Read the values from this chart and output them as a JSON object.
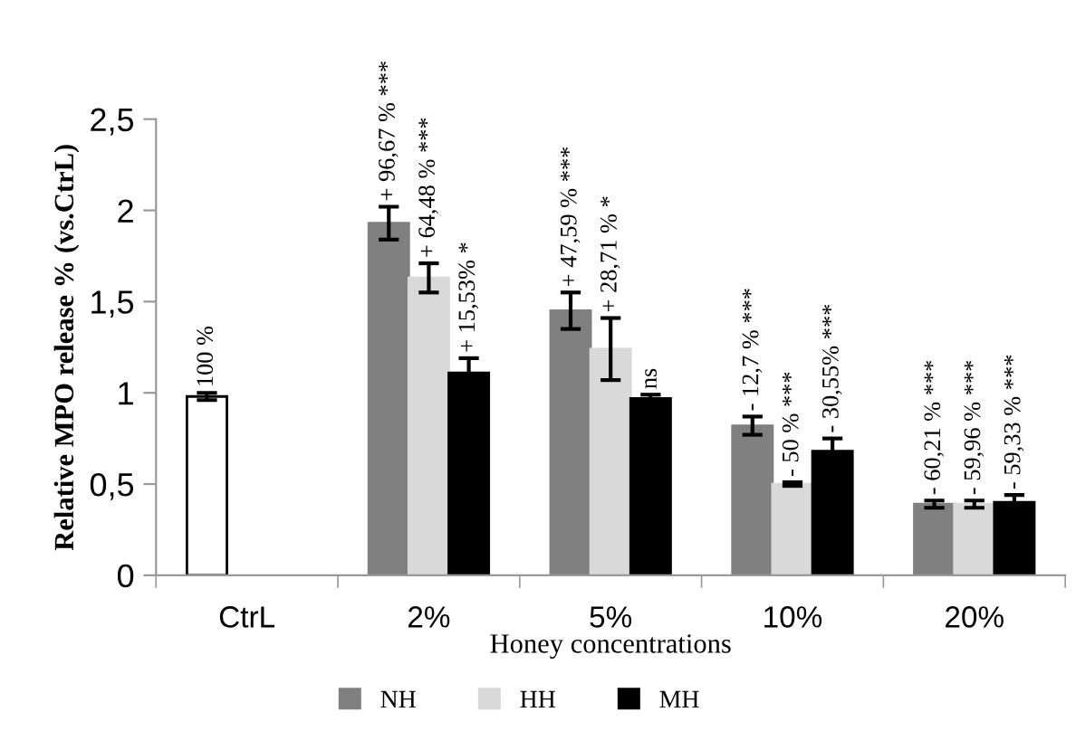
{
  "chart_data": {
    "type": "bar",
    "xlabel": "Honey concentrations",
    "ylabel": "Relative MPO release % (vs.CtrL)",
    "categories": [
      "CtrL",
      "2%",
      "5%",
      "10%",
      "20%"
    ],
    "series": [
      {
        "color": "#ffffff",
        "values": [
          0.98,
          null,
          null,
          null,
          null
        ],
        "errors": [
          0.02,
          null,
          null,
          null,
          null
        ]
      },
      {
        "name": "NH",
        "color": "#808080",
        "values": [
          null,
          1.93,
          1.45,
          0.82,
          0.39
        ],
        "errors": [
          null,
          0.09,
          0.1,
          0.05,
          0.02
        ]
      },
      {
        "name": "HH",
        "color": "#d9d9d9",
        "values": [
          null,
          1.63,
          1.24,
          0.5,
          0.39
        ],
        "errors": [
          null,
          0.08,
          0.17,
          0.01,
          0.02
        ]
      },
      {
        "name": "MH",
        "color": "#000000",
        "values": [
          null,
          1.11,
          0.97,
          0.68,
          0.4
        ],
        "errors": [
          null,
          0.08,
          0.02,
          0.07,
          0.04
        ]
      }
    ],
    "annotations": [
      "100 %",
      "+ 96,67 % ***",
      "+ 64,48 % ***",
      "+ 15,53% *",
      "+ 47,59 % ***",
      "+ 28,71 % *",
      "ns",
      "- 12,7 % ***",
      "- 50 % ***",
      "- 30,55% ***",
      "- 60,21 % ***",
      "- 59,96 % ***",
      "- 59,33 % ***"
    ],
    "ylim": [
      0,
      2.5
    ],
    "yticks": [
      0,
      {
        "value": 0.5,
        "label": "0,5"
      },
      1,
      {
        "value": 1.5,
        "label": "1,5"
      },
      2,
      {
        "value": 2.5,
        "label": "2,5"
      }
    ],
    "grid": false,
    "legend": "bottom"
  }
}
